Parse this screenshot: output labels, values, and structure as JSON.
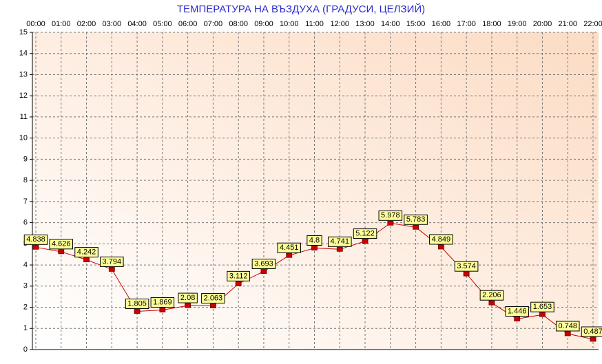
{
  "chart_data": {
    "type": "line",
    "title": "ТЕМПЕРАТУРА НА ВЪЗДУХА  (ГРАДУСИ, ЦЕЛЗИЙ)",
    "categories": [
      "00:00",
      "01:00",
      "02:00",
      "03:00",
      "04:00",
      "05:00",
      "06:00",
      "07:00",
      "08:00",
      "09:00",
      "10:00",
      "11:00",
      "12:00",
      "13:00",
      "14:00",
      "15:00",
      "16:00",
      "17:00",
      "18:00",
      "19:00",
      "20:00",
      "21:00",
      "22:00"
    ],
    "values": [
      4.838,
      4.626,
      4.242,
      3.794,
      1.805,
      1.869,
      2.08,
      2.063,
      3.112,
      3.693,
      4.451,
      4.8,
      4.741,
      5.122,
      5.978,
      5.783,
      4.849,
      3.574,
      2.206,
      1.446,
      1.653,
      0.748,
      0.487
    ],
    "color": "#cc0000",
    "ylim": [
      0,
      15
    ],
    "yticks": [
      0,
      1,
      2,
      3,
      4,
      5,
      6,
      7,
      8,
      9,
      10,
      11,
      12,
      13,
      14,
      15
    ],
    "grid": true
  }
}
